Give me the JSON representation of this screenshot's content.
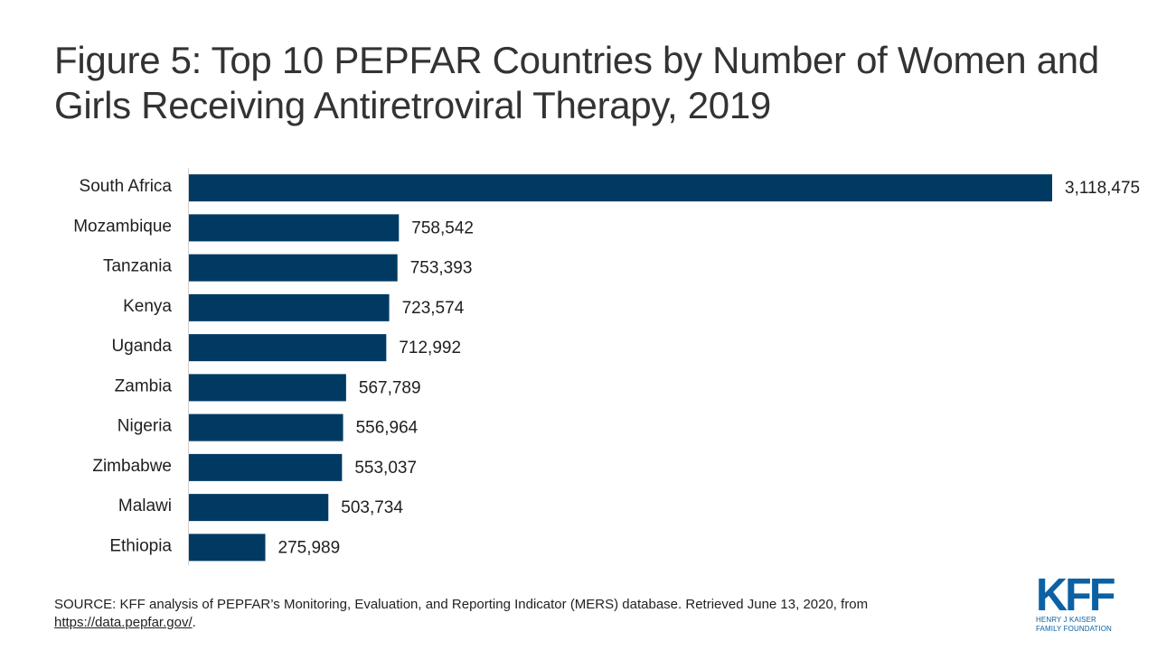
{
  "title": "Figure 5: Top 10 PEPFAR Countries by Number of Women and Girls Receiving Antiretroviral Therapy, 2019",
  "colors": {
    "bar": "#003a63",
    "axis": "#d0d0d0",
    "logo": "#0b61a4"
  },
  "chart_data": {
    "type": "bar",
    "orientation": "horizontal",
    "title": "Figure 5: Top 10 PEPFAR Countries by Number of Women and Girls Receiving Antiretroviral Therapy, 2019",
    "xlabel": "",
    "ylabel": "",
    "categories": [
      "South Africa",
      "Mozambique",
      "Tanzania",
      "Kenya",
      "Uganda",
      "Zambia",
      "Nigeria",
      "Zimbabwe",
      "Malawi",
      "Ethiopia"
    ],
    "values": [
      3118475,
      758542,
      753393,
      723574,
      712992,
      567789,
      556964,
      553037,
      503734,
      275989
    ],
    "value_labels": [
      "3,118,475",
      "758,542",
      "753,393",
      "723,574",
      "712,992",
      "567,789",
      "556,964",
      "553,037",
      "503,734",
      "275,989"
    ],
    "xlim": [
      0,
      3118475
    ],
    "grid": false,
    "legend": "none"
  },
  "source": {
    "text": "SOURCE: KFF analysis of PEPFAR’s Monitoring, Evaluation, and Reporting Indicator (MERS) database. Retrieved June 13, 2020, from",
    "link_text": "https://data.pepfar.gov/",
    "link_suffix": "."
  },
  "logo": {
    "mark": "KFF",
    "line1": "HENRY J KAISER",
    "line2": "FAMILY FOUNDATION"
  }
}
